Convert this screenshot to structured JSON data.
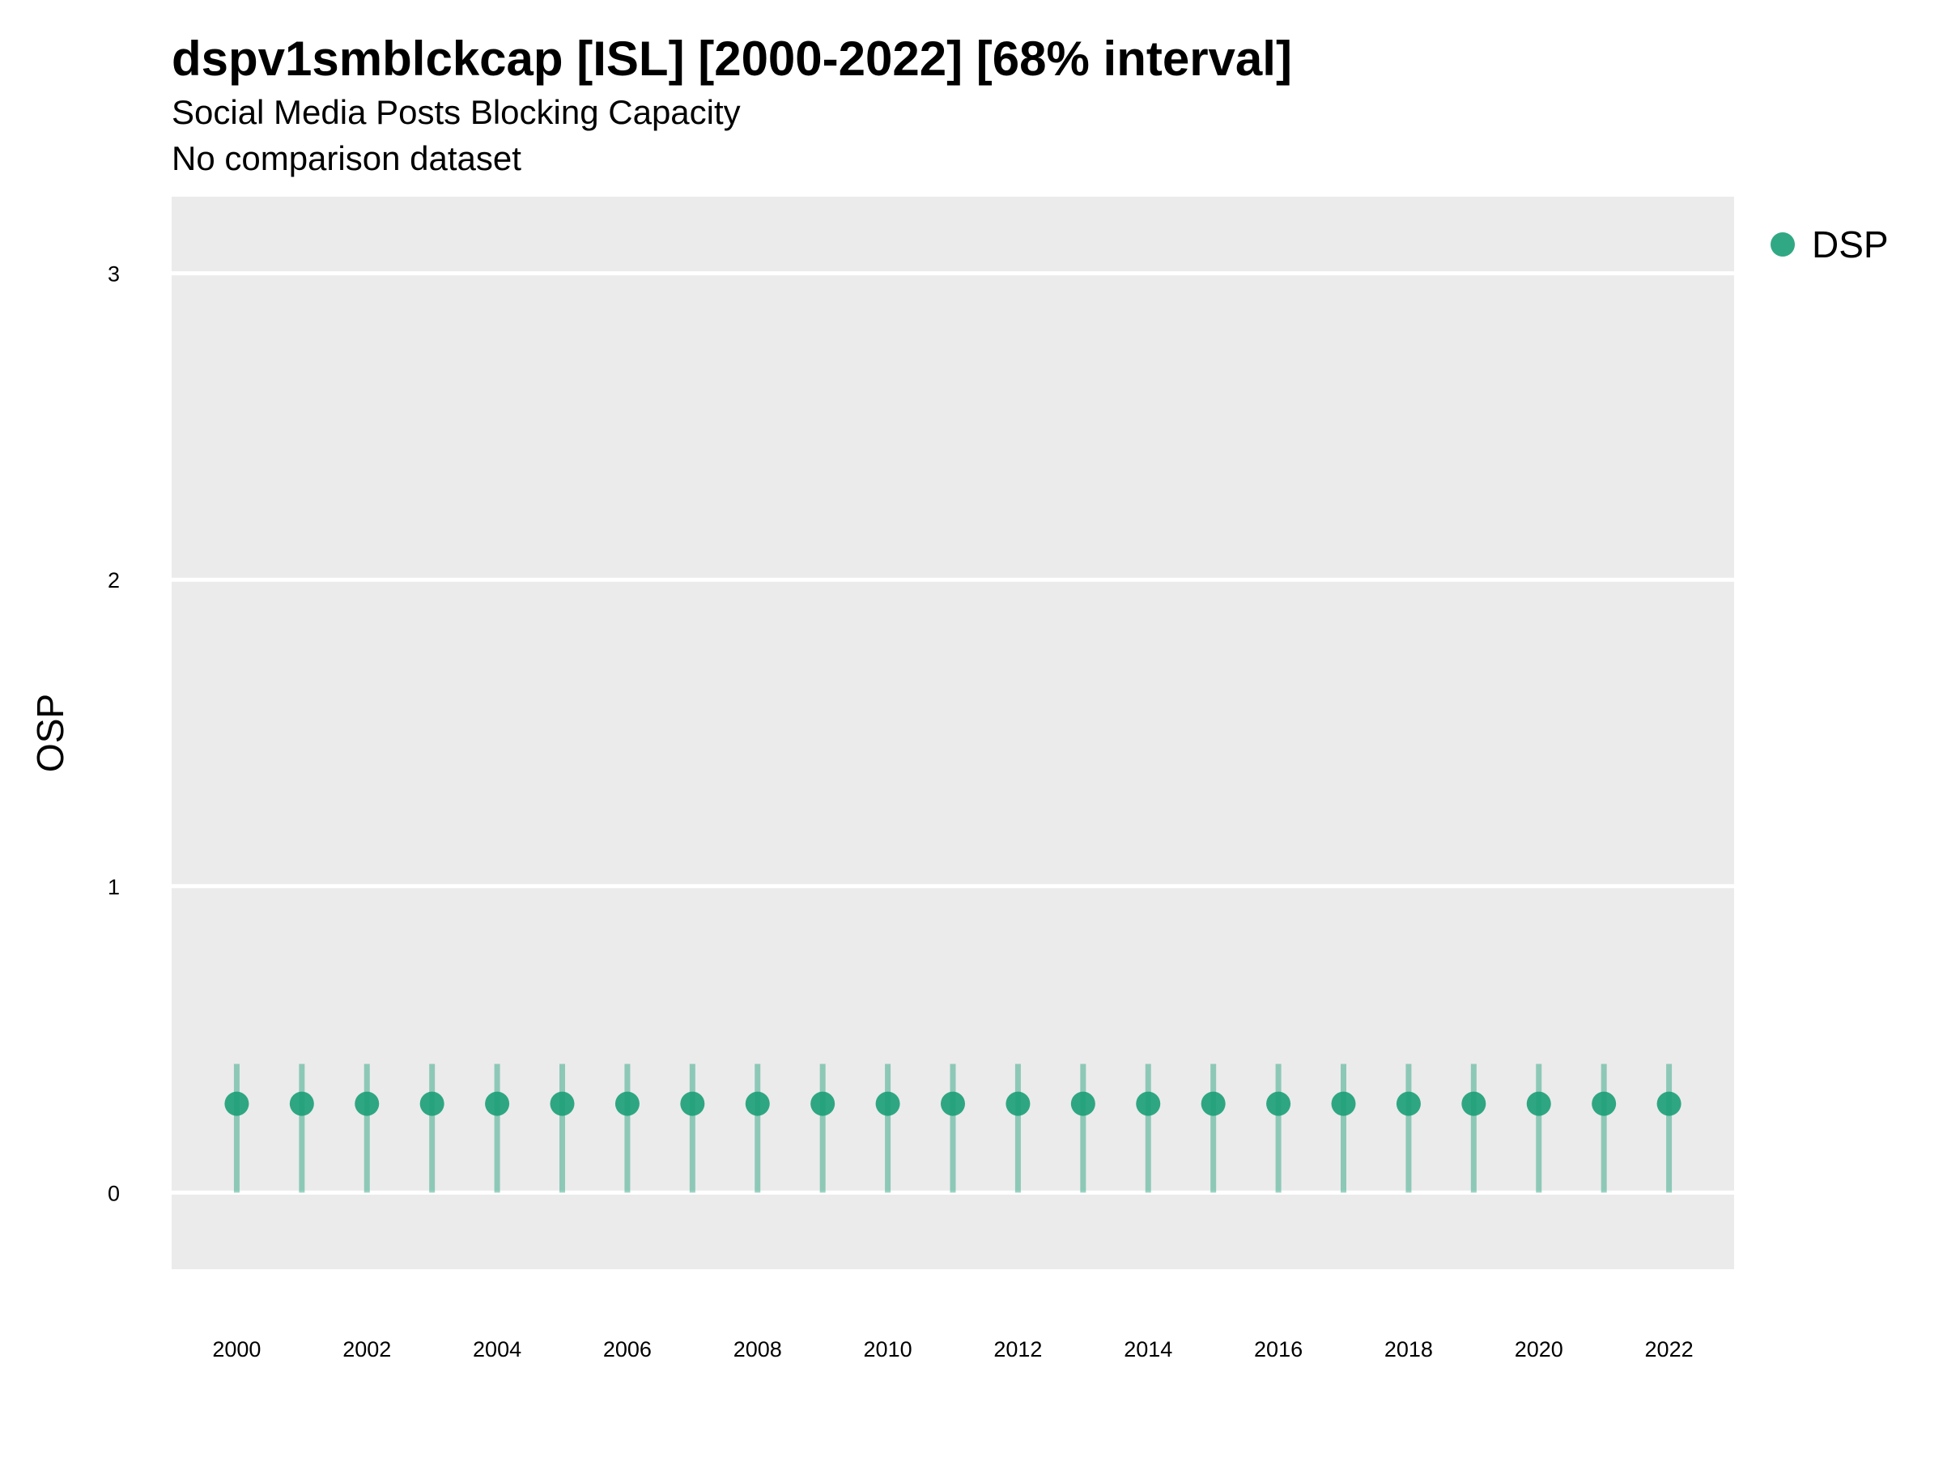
{
  "chart_data": {
    "type": "scatter",
    "title": "dspv1smblckcap [ISL] [2000-2022] [68% interval]",
    "subtitle": "Social Media Posts Blocking Capacity",
    "caption": "No comparison dataset",
    "xlabel": "",
    "ylabel": "OSP",
    "x_ticks": [
      "2000",
      "2002",
      "2004",
      "2006",
      "2008",
      "2010",
      "2012",
      "2014",
      "2016",
      "2018",
      "2020",
      "2022"
    ],
    "y_ticks": [
      "0",
      "1",
      "2",
      "3"
    ],
    "xlim": [
      1999,
      2023
    ],
    "ylim": [
      -0.25,
      3.25
    ],
    "grid": true,
    "legend_position": "right",
    "colors": {
      "series": "#1b9e77",
      "panel": "#ebebeb",
      "grid": "#ffffff"
    },
    "series": [
      {
        "name": "DSP",
        "x": [
          2000,
          2001,
          2002,
          2003,
          2004,
          2005,
          2006,
          2007,
          2008,
          2009,
          2010,
          2011,
          2012,
          2013,
          2014,
          2015,
          2016,
          2017,
          2018,
          2019,
          2020,
          2021,
          2022
        ],
        "y": [
          0.29,
          0.29,
          0.29,
          0.29,
          0.29,
          0.29,
          0.29,
          0.29,
          0.29,
          0.29,
          0.29,
          0.29,
          0.29,
          0.29,
          0.29,
          0.29,
          0.29,
          0.29,
          0.29,
          0.29,
          0.29,
          0.29,
          0.29
        ],
        "lower": [
          0.0,
          0.0,
          0.0,
          0.0,
          0.0,
          0.0,
          0.0,
          0.0,
          0.0,
          0.0,
          0.0,
          0.0,
          0.0,
          0.0,
          0.0,
          0.0,
          0.0,
          0.0,
          0.0,
          0.0,
          0.0,
          0.0,
          0.0
        ],
        "upper": [
          0.42,
          0.42,
          0.42,
          0.42,
          0.42,
          0.42,
          0.42,
          0.42,
          0.42,
          0.42,
          0.42,
          0.42,
          0.42,
          0.42,
          0.42,
          0.42,
          0.42,
          0.42,
          0.42,
          0.42,
          0.42,
          0.42,
          0.42
        ]
      }
    ]
  }
}
